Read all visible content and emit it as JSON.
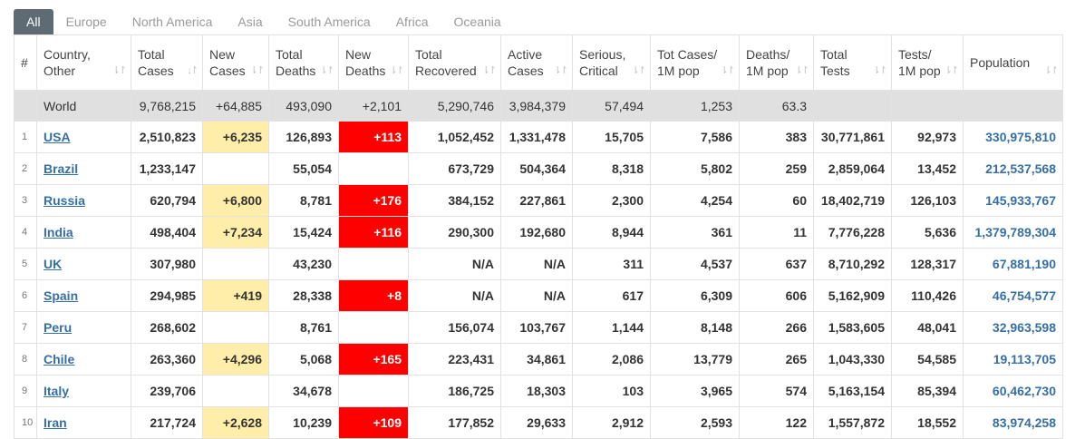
{
  "tabs": [
    "All",
    "Europe",
    "North America",
    "Asia",
    "South America",
    "Africa",
    "Oceania"
  ],
  "active_tab": 0,
  "headers": [
    {
      "line1": "#",
      "line2": ""
    },
    {
      "line1": "Country,",
      "line2": "Other"
    },
    {
      "line1": "Total",
      "line2": "Cases"
    },
    {
      "line1": "New",
      "line2": "Cases"
    },
    {
      "line1": "Total",
      "line2": "Deaths"
    },
    {
      "line1": "New",
      "line2": "Deaths"
    },
    {
      "line1": "Total",
      "line2": "Recovered"
    },
    {
      "line1": "Active",
      "line2": "Cases"
    },
    {
      "line1": "Serious,",
      "line2": "Critical"
    },
    {
      "line1": "Tot Cases/",
      "line2": "1M pop"
    },
    {
      "line1": "Deaths/",
      "line2": "1M pop"
    },
    {
      "line1": "Total",
      "line2": "Tests"
    },
    {
      "line1": "Tests/",
      "line2": "1M pop"
    },
    {
      "line1": "Population",
      "line2": ""
    }
  ],
  "sort_icons": {
    "default": "sort-icon",
    "active": "sort-desc-icon"
  },
  "colors": {
    "new_cases_bg": "#ffeeaa",
    "new_deaths_bg": "#ff0000",
    "link": "#366fa6",
    "world_bg": "#e0e0e0",
    "tab_active": "#5f6b72"
  },
  "world": {
    "country": "World",
    "total_cases": "9,768,215",
    "new_cases": "+64,885",
    "total_deaths": "493,090",
    "new_deaths": "+2,101",
    "total_recovered": "5,290,746",
    "active_cases": "3,984,379",
    "serious": "57,494",
    "cases_per_m": "1,253",
    "deaths_per_m": "63.3",
    "total_tests": "",
    "tests_per_m": "",
    "population": ""
  },
  "rows": [
    {
      "idx": "1",
      "country": "USA",
      "total_cases": "2,510,823",
      "new_cases": "+6,235",
      "total_deaths": "126,893",
      "new_deaths": "+113",
      "total_recovered": "1,052,452",
      "active_cases": "1,331,478",
      "serious": "15,705",
      "cases_per_m": "7,586",
      "deaths_per_m": "383",
      "total_tests": "30,771,861",
      "tests_per_m": "92,973",
      "population": "330,975,810"
    },
    {
      "idx": "2",
      "country": "Brazil",
      "total_cases": "1,233,147",
      "new_cases": "",
      "total_deaths": "55,054",
      "new_deaths": "",
      "total_recovered": "673,729",
      "active_cases": "504,364",
      "serious": "8,318",
      "cases_per_m": "5,802",
      "deaths_per_m": "259",
      "total_tests": "2,859,064",
      "tests_per_m": "13,452",
      "population": "212,537,568"
    },
    {
      "idx": "3",
      "country": "Russia",
      "total_cases": "620,794",
      "new_cases": "+6,800",
      "total_deaths": "8,781",
      "new_deaths": "+176",
      "total_recovered": "384,152",
      "active_cases": "227,861",
      "serious": "2,300",
      "cases_per_m": "4,254",
      "deaths_per_m": "60",
      "total_tests": "18,402,719",
      "tests_per_m": "126,103",
      "population": "145,933,767"
    },
    {
      "idx": "4",
      "country": "India",
      "total_cases": "498,404",
      "new_cases": "+7,234",
      "total_deaths": "15,424",
      "new_deaths": "+116",
      "total_recovered": "290,300",
      "active_cases": "192,680",
      "serious": "8,944",
      "cases_per_m": "361",
      "deaths_per_m": "11",
      "total_tests": "7,776,228",
      "tests_per_m": "5,636",
      "population": "1,379,789,304"
    },
    {
      "idx": "5",
      "country": "UK",
      "total_cases": "307,980",
      "new_cases": "",
      "total_deaths": "43,230",
      "new_deaths": "",
      "total_recovered": "N/A",
      "active_cases": "N/A",
      "serious": "311",
      "cases_per_m": "4,537",
      "deaths_per_m": "637",
      "total_tests": "8,710,292",
      "tests_per_m": "128,317",
      "population": "67,881,190"
    },
    {
      "idx": "6",
      "country": "Spain",
      "total_cases": "294,985",
      "new_cases": "+419",
      "total_deaths": "28,338",
      "new_deaths": "+8",
      "total_recovered": "N/A",
      "active_cases": "N/A",
      "serious": "617",
      "cases_per_m": "6,309",
      "deaths_per_m": "606",
      "total_tests": "5,162,909",
      "tests_per_m": "110,426",
      "population": "46,754,577"
    },
    {
      "idx": "7",
      "country": "Peru",
      "total_cases": "268,602",
      "new_cases": "",
      "total_deaths": "8,761",
      "new_deaths": "",
      "total_recovered": "156,074",
      "active_cases": "103,767",
      "serious": "1,144",
      "cases_per_m": "8,148",
      "deaths_per_m": "266",
      "total_tests": "1,583,605",
      "tests_per_m": "48,041",
      "population": "32,963,598"
    },
    {
      "idx": "8",
      "country": "Chile",
      "total_cases": "263,360",
      "new_cases": "+4,296",
      "total_deaths": "5,068",
      "new_deaths": "+165",
      "total_recovered": "223,431",
      "active_cases": "34,861",
      "serious": "2,086",
      "cases_per_m": "13,779",
      "deaths_per_m": "265",
      "total_tests": "1,043,330",
      "tests_per_m": "54,585",
      "population": "19,113,705"
    },
    {
      "idx": "9",
      "country": "Italy",
      "total_cases": "239,706",
      "new_cases": "",
      "total_deaths": "34,678",
      "new_deaths": "",
      "total_recovered": "186,725",
      "active_cases": "18,303",
      "serious": "103",
      "cases_per_m": "3,965",
      "deaths_per_m": "574",
      "total_tests": "5,163,154",
      "tests_per_m": "85,394",
      "population": "60,462,730"
    },
    {
      "idx": "10",
      "country": "Iran",
      "total_cases": "217,724",
      "new_cases": "+2,628",
      "total_deaths": "10,239",
      "new_deaths": "+109",
      "total_recovered": "177,852",
      "active_cases": "29,633",
      "serious": "2,912",
      "cases_per_m": "2,593",
      "deaths_per_m": "122",
      "total_tests": "1,557,872",
      "tests_per_m": "18,552",
      "population": "83,974,258"
    }
  ]
}
